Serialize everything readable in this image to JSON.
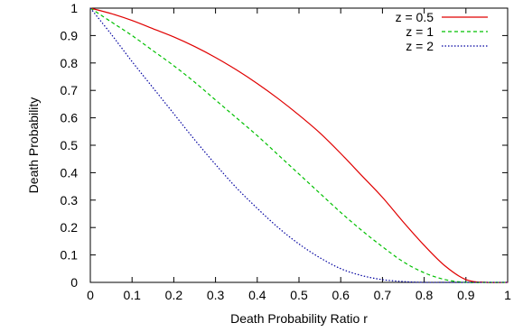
{
  "chart_data": {
    "type": "line",
    "title": "",
    "xlabel": "Death Probability Ratio r",
    "ylabel": "Death Probability",
    "xlim": [
      0,
      1
    ],
    "ylim": [
      0,
      1
    ],
    "xticks": [
      "0",
      "0.1",
      "0.2",
      "0.3",
      "0.4",
      "0.5",
      "0.6",
      "0.7",
      "0.8",
      "0.9",
      "1"
    ],
    "yticks": [
      "0",
      "0.1",
      "0.2",
      "0.3",
      "0.4",
      "0.5",
      "0.6",
      "0.7",
      "0.8",
      "0.9",
      "1"
    ],
    "grid": false,
    "legend_position": "top-right",
    "x": [
      0,
      0.05,
      0.1,
      0.15,
      0.2,
      0.25,
      0.3,
      0.35,
      0.4,
      0.45,
      0.5,
      0.55,
      0.6,
      0.65,
      0.7,
      0.75,
      0.8,
      0.85,
      0.9,
      0.95,
      1.0
    ],
    "series": [
      {
        "name": "z = 0.5",
        "color": "#e00000",
        "dash": "solid",
        "values": [
          1.0,
          0.98,
          0.955,
          0.925,
          0.895,
          0.86,
          0.82,
          0.775,
          0.725,
          0.67,
          0.61,
          0.545,
          0.47,
          0.39,
          0.31,
          0.22,
          0.135,
          0.06,
          0.01,
          0.0,
          0.0
        ]
      },
      {
        "name": "z = 1",
        "color": "#00c000",
        "dash": "dashed",
        "values": [
          1.0,
          0.95,
          0.9,
          0.845,
          0.79,
          0.73,
          0.665,
          0.6,
          0.535,
          0.465,
          0.395,
          0.325,
          0.255,
          0.19,
          0.13,
          0.075,
          0.035,
          0.01,
          0.0,
          0.0,
          0.0
        ]
      },
      {
        "name": "z = 2",
        "color": "#0000a0",
        "dash": "dotted",
        "values": [
          1.0,
          0.905,
          0.805,
          0.71,
          0.615,
          0.52,
          0.43,
          0.345,
          0.27,
          0.2,
          0.14,
          0.09,
          0.05,
          0.025,
          0.01,
          0.003,
          0.0,
          0.0,
          0.0,
          0.0,
          0.0
        ]
      }
    ]
  }
}
